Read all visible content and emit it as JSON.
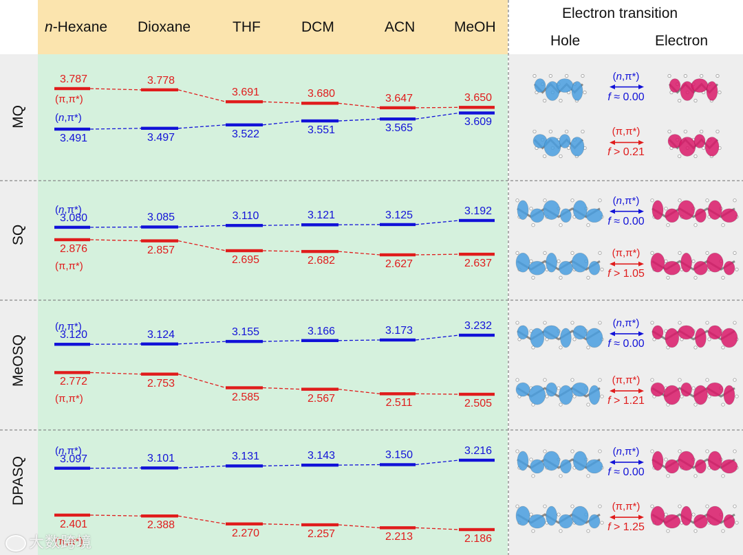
{
  "colors": {
    "header_bg": "#fbe4ae",
    "plot_bg": "#d5f1dd",
    "side_bg": "#eeeeee",
    "npi": "#1212d8",
    "pipi": "#e01c1c",
    "hole": "#4a9fe0",
    "electron": "#db1a6a"
  },
  "header": {
    "solvents": [
      "n-Hexane",
      "Dioxane",
      "THF",
      "DCM",
      "ACN",
      "MeOH"
    ],
    "n_prefix": "n",
    "hexane_rest": "-Hexane",
    "transition_title": "Electron transition",
    "hole_label": "Hole",
    "electron_label": "Electron"
  },
  "chart_data": {
    "type": "energy-level diagram",
    "categories": [
      "n-Hexane",
      "Dioxane",
      "THF",
      "DCM",
      "ACN",
      "MeOH"
    ],
    "panels": [
      {
        "name": "MQ",
        "series": [
          {
            "name": "(π,π*)",
            "values": [
              3.787,
              3.778,
              3.691,
              3.68,
              3.647,
              3.65
            ],
            "labels": [
              "3.787",
              "3.778",
              "3.691",
              "3.680",
              "3.647",
              "3.650"
            ]
          },
          {
            "name": "(n,π*)",
            "values": [
              3.491,
              3.497,
              3.522,
              3.551,
              3.565,
              3.609
            ],
            "labels": [
              "3.491",
              "3.497",
              "3.522",
              "3.551",
              "3.565",
              "3.609"
            ]
          }
        ],
        "transitions": [
          {
            "type": "(n,π*)",
            "f": "f ≈ 0.00"
          },
          {
            "type": "(π,π*)",
            "f": "f > 0.21"
          }
        ]
      },
      {
        "name": "SQ",
        "series": [
          {
            "name": "(n,π*)",
            "values": [
              3.08,
              3.085,
              3.11,
              3.121,
              3.125,
              3.192
            ],
            "labels": [
              "3.080",
              "3.085",
              "3.110",
              "3.121",
              "3.125",
              "3.192"
            ]
          },
          {
            "name": "(π,π*)",
            "values": [
              2.876,
              2.857,
              2.695,
              2.682,
              2.627,
              2.637
            ],
            "labels": [
              "2.876",
              "2.857",
              "2.695",
              "2.682",
              "2.627",
              "2.637"
            ]
          }
        ],
        "transitions": [
          {
            "type": "(n,π*)",
            "f": "f ≈ 0.00"
          },
          {
            "type": "(π,π*)",
            "f": "f > 1.05"
          }
        ]
      },
      {
        "name": "MeOSQ",
        "series": [
          {
            "name": "(n,π*)",
            "values": [
              3.12,
              3.124,
              3.155,
              3.166,
              3.173,
              3.232
            ],
            "labels": [
              "3.120",
              "3.124",
              "3.155",
              "3.166",
              "3.173",
              "3.232"
            ]
          },
          {
            "name": "(π,π*)",
            "values": [
              2.772,
              2.753,
              2.585,
              2.567,
              2.511,
              2.505
            ],
            "labels": [
              "2.772",
              "2.753",
              "2.585",
              "2.567",
              "2.511",
              "2.505"
            ]
          }
        ],
        "transitions": [
          {
            "type": "(n,π*)",
            "f": "f ≈ 0.00"
          },
          {
            "type": "(π,π*)",
            "f": "f > 1.21"
          }
        ]
      },
      {
        "name": "DPASQ",
        "series": [
          {
            "name": "(n,π*)",
            "values": [
              3.097,
              3.101,
              3.131,
              3.143,
              3.15,
              3.216
            ],
            "labels": [
              "3.097",
              "3.101",
              "3.131",
              "3.143",
              "3.150",
              "3.216"
            ]
          },
          {
            "name": "(π,π*)",
            "values": [
              2.401,
              2.388,
              2.27,
              2.257,
              2.213,
              2.186
            ],
            "labels": [
              "2.401",
              "2.388",
              "2.270",
              "2.257",
              "2.213",
              "2.186"
            ]
          }
        ],
        "transitions": [
          {
            "type": "(n,π*)",
            "f": "f ≈ 0.00"
          },
          {
            "type": "(π,π*)",
            "f": "f > 1.25"
          }
        ]
      }
    ]
  },
  "watermark": "大数跨境"
}
